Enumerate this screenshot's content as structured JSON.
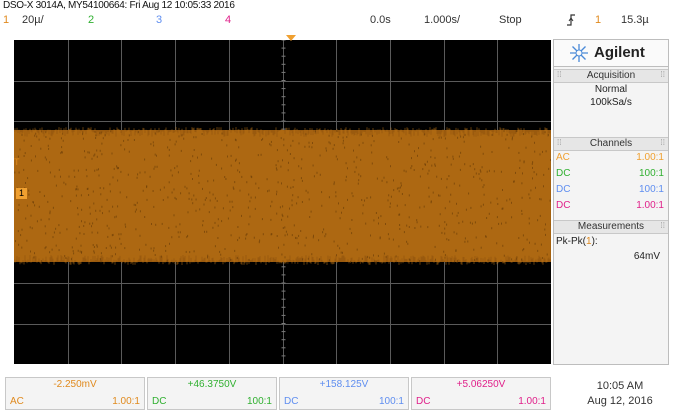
{
  "header": {
    "title": "DSO-X 3014A, MY54100664: Fri Aug 12 10:05:33 2016",
    "ch1_num": "1",
    "ch1_scale": "20µ/",
    "ch2_num": "2",
    "ch3_num": "3",
    "ch4_num": "4",
    "time_offset": "0.0s",
    "time_scale": "1.000s/",
    "run_state": "Stop",
    "trigger_icon": "trigger-edge-icon",
    "trigger_source": "1",
    "trigger_level": "15.3µ"
  },
  "screen": {
    "ch1_marker": "1",
    "trigger_marker": "T"
  },
  "panel": {
    "brand": "Agilent",
    "acquisition_title": "Acquisition",
    "acq_mode": "Normal",
    "acq_rate": "100kSa/s",
    "channels_title": "Channels",
    "channels": [
      {
        "coupling": "AC",
        "ratio": "1.00:1",
        "color": "#f0a030"
      },
      {
        "coupling": "DC",
        "ratio": "100:1",
        "color": "#30b030"
      },
      {
        "coupling": "DC",
        "ratio": "100:1",
        "color": "#5f8ef0"
      },
      {
        "coupling": "DC",
        "ratio": "1.00:1",
        "color": "#e0208a"
      }
    ],
    "measurements_title": "Measurements",
    "meas_label": "Pk-Pk(",
    "meas_src": "1",
    "meas_close": "):",
    "meas_value": "64mV"
  },
  "bottom": {
    "ch1": {
      "value": "-2.250mV",
      "coupling": "AC",
      "scale": "1.00:1"
    },
    "ch2": {
      "value": "+46.3750V",
      "coupling": "DC",
      "scale": "100:1"
    },
    "ch3": {
      "value": "+158.125V",
      "coupling": "DC",
      "scale": "100:1"
    },
    "ch4": {
      "value": "+5.06250V",
      "coupling": "DC",
      "scale": "1.00:1"
    },
    "time": "10:05 AM",
    "date": "Aug 12, 2016"
  },
  "colors": {
    "ch1": "#f0a030",
    "ch2": "#30b030",
    "ch3": "#5f8ef0",
    "ch4": "#e0208a",
    "trace": "#9a5a0e"
  }
}
